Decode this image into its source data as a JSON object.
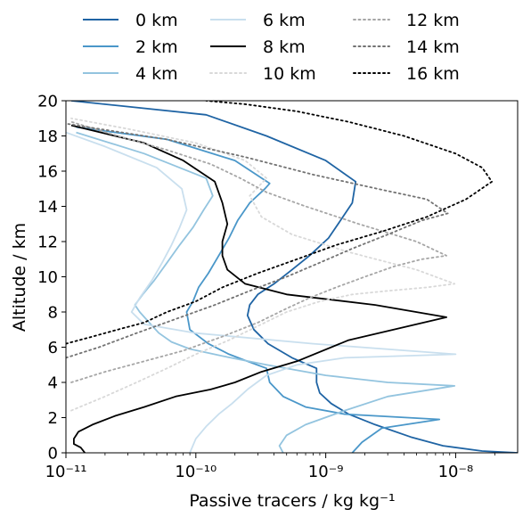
{
  "chart_data": {
    "type": "line",
    "title": "",
    "xlabel": "Passive tracers / kg kg⁻¹",
    "ylabel": "Altitude / km",
    "x_scale": "log",
    "xlim": [
      1e-11,
      3e-08
    ],
    "ylim": [
      0,
      20
    ],
    "x_ticks": [
      {
        "value": 1e-11,
        "label": "10⁻¹¹"
      },
      {
        "value": 1e-10,
        "label": "10⁻¹⁰"
      },
      {
        "value": 1e-09,
        "label": "10⁻⁹"
      },
      {
        "value": 1e-08,
        "label": "10⁻⁸"
      }
    ],
    "y_ticks": [
      0,
      2,
      4,
      6,
      8,
      10,
      12,
      14,
      16,
      18,
      20
    ],
    "grid": false,
    "legend_position": "top",
    "series": [
      {
        "name": "0 km",
        "color": "#1f64a4",
        "dash": "solid",
        "x": [
          3e-08,
          1.6e-08,
          8e-09,
          4.5e-09,
          2.4e-09,
          1.5e-09,
          1.1e-09,
          9e-10,
          8.5e-10,
          8.5e-10,
          5.5e-10,
          3.6e-10,
          2.8e-10,
          2.5e-10,
          2.6e-10,
          3e-10,
          4e-10,
          5.5e-10,
          7.5e-10,
          1.05e-09,
          1.3e-09,
          1.6e-09,
          1.7e-09,
          1e-09,
          3.5e-10,
          1.2e-10,
          1.1e-11
        ],
        "y": [
          0,
          0.1,
          0.4,
          0.9,
          1.6,
          2.2,
          2.8,
          3.4,
          4,
          4.8,
          5.4,
          6.2,
          7,
          7.8,
          8.4,
          9,
          9.6,
          10.4,
          11.2,
          12.2,
          13.2,
          14.2,
          15.4,
          16.6,
          18,
          19.2,
          20
        ]
      },
      {
        "name": "2 km",
        "color": "#4a97c9",
        "dash": "solid",
        "x": [
          1.6e-09,
          1.9e-09,
          2.7e-09,
          7.5e-09,
          1.4e-09,
          7e-10,
          4.7e-10,
          3.7e-10,
          3.5e-10,
          2.5e-10,
          1.8e-10,
          1.25e-10,
          9e-11,
          8.5e-11,
          9.5e-11,
          1.05e-10,
          1.25e-10,
          1.5e-10,
          1.8e-10,
          2.1e-10,
          2.6e-10,
          3.4e-10,
          3.7e-10,
          2e-10,
          6e-11,
          1.2e-11
        ],
        "y": [
          0,
          0.6,
          1.4,
          1.9,
          2.2,
          2.6,
          3.2,
          4,
          4.8,
          5.2,
          5.6,
          6.2,
          7,
          8,
          8.6,
          9.4,
          10.2,
          11.2,
          12.2,
          13.2,
          14.2,
          15,
          15.3,
          16.6,
          17.8,
          18.5
        ]
      },
      {
        "name": "4 km",
        "color": "#93c4df",
        "dash": "solid",
        "x": [
          4.7e-10,
          4.4e-10,
          5e-10,
          7e-10,
          1.4e-09,
          3e-09,
          9.8e-09,
          3e-09,
          1e-09,
          3.5e-10,
          1.6e-10,
          9e-11,
          6.5e-11,
          5.2e-11,
          4.5e-11,
          3.7e-11,
          3.4e-11,
          3.9e-11,
          4.8e-11,
          6e-11,
          7.5e-11,
          9.5e-11,
          1.15e-10,
          1.35e-10,
          1.2e-10,
          4e-11,
          1.2e-11
        ],
        "y": [
          0,
          0.4,
          1,
          1.6,
          2.4,
          3.2,
          3.8,
          4,
          4.4,
          5,
          5.5,
          5.9,
          6.3,
          6.8,
          7.3,
          8,
          8.4,
          9,
          9.8,
          10.8,
          11.8,
          12.8,
          13.8,
          14.6,
          15.6,
          17,
          18.2
        ]
      },
      {
        "name": "6 km",
        "color": "#c9dfee",
        "dash": "solid",
        "x": [
          9e-11,
          1e-10,
          1.2e-10,
          1.5e-10,
          1.9e-10,
          2.5e-10,
          3.5e-10,
          6e-10,
          1.4e-09,
          1e-08,
          8e-10,
          1e-10,
          4e-11,
          3.2e-11,
          3.7e-11,
          4.6e-11,
          5.5e-11,
          6.5e-11,
          7.5e-11,
          8.5e-11,
          7.8e-11,
          5e-11,
          2e-11,
          1e-11
        ],
        "y": [
          0,
          0.8,
          1.5,
          2.2,
          2.8,
          3.6,
          4.4,
          5,
          5.4,
          5.6,
          6.2,
          6.8,
          7.3,
          8,
          8.8,
          9.8,
          10.8,
          11.8,
          12.8,
          13.8,
          15,
          16.2,
          17.4,
          18.2
        ]
      },
      {
        "name": "8 km",
        "color": "#000000",
        "dash": "solid",
        "x": [
          1.4e-11,
          1.3e-11,
          1.15e-11,
          1.15e-11,
          1.25e-11,
          1.6e-11,
          2.4e-11,
          4e-11,
          7e-11,
          1.3e-10,
          2e-10,
          3.2e-10,
          6e-10,
          1.5e-09,
          8.5e-09,
          2.4e-09,
          5e-10,
          2.4e-10,
          1.75e-10,
          1.6e-10,
          1.6e-10,
          1.75e-10,
          1.6e-10,
          1.4e-10,
          8e-11,
          4e-11,
          1.1e-11
        ],
        "y": [
          0,
          0.3,
          0.5,
          0.8,
          1.2,
          1.6,
          2.1,
          2.6,
          3.2,
          3.6,
          4,
          4.6,
          5.2,
          6.4,
          7.7,
          8.4,
          9,
          9.6,
          10.4,
          11.2,
          12,
          13,
          14.2,
          15.4,
          16.6,
          17.6,
          18.6
        ]
      },
      {
        "name": "10 km",
        "color": "#d9d9d9",
        "dash": "dotted",
        "x": [
          1.1e-11,
          2e-11,
          3.5e-11,
          6e-11,
          1e-10,
          1.8e-10,
          3e-10,
          5e-10,
          9e-10,
          1.6e-09,
          3e-09,
          6e-09,
          9.8e-09,
          5e-09,
          1.5e-09,
          5.5e-10,
          3.2e-10,
          2.6e-10,
          3.5e-10,
          2.4e-10,
          1e-10,
          3e-11,
          1.1e-11
        ],
        "y": [
          2.4,
          3.2,
          4,
          4.8,
          5.6,
          6.4,
          7.2,
          8,
          8.6,
          9,
          9.2,
          9.4,
          9.6,
          10.4,
          11.4,
          12.4,
          13.4,
          14.6,
          15.6,
          16.6,
          17.6,
          18.4,
          19
        ]
      },
      {
        "name": "12 km",
        "color": "#a6a6a6",
        "dash": "dotted",
        "x": [
          1.1e-11,
          2e-11,
          4e-11,
          8e-11,
          1.6e-10,
          3e-10,
          5e-10,
          7.5e-10,
          1.2e-09,
          2e-09,
          3.4e-09,
          5.5e-09,
          8.5e-09,
          5e-09,
          1.8e-09,
          7e-10,
          3.5e-10,
          2.2e-10,
          1.3e-10,
          6e-11,
          2.5e-11,
          1.1e-11
        ],
        "y": [
          4,
          4.6,
          5.2,
          5.8,
          6.6,
          7.4,
          8.2,
          8.8,
          9.4,
          10,
          10.6,
          11,
          11.2,
          12,
          13,
          14,
          14.8,
          15.6,
          16.4,
          17.2,
          18,
          18.8
        ]
      },
      {
        "name": "14 km",
        "color": "#737373",
        "dash": "dotted",
        "x": [
          1e-11,
          1.8e-11,
          3.5e-11,
          7e-11,
          1.4e-10,
          2.6e-10,
          5e-10,
          9e-10,
          1.6e-09,
          3e-09,
          5.5e-09,
          8.7e-09,
          6e-09,
          2.5e-09,
          8e-10,
          2.4e-10,
          6e-11,
          1.8e-11,
          1e-11
        ],
        "y": [
          5.4,
          6,
          6.8,
          7.6,
          8.4,
          9.2,
          10,
          10.8,
          11.6,
          12.4,
          13.2,
          13.6,
          14.4,
          15,
          15.8,
          16.8,
          17.8,
          18.4,
          18.7
        ]
      },
      {
        "name": "16 km",
        "color": "#000000",
        "dash": "dotted",
        "x": [
          1e-11,
          1.6e-11,
          2.5e-11,
          4e-11,
          6e-11,
          1e-10,
          1.6e-10,
          3e-10,
          6e-10,
          1.2e-09,
          2.8e-09,
          6e-09,
          1.2e-08,
          1.9e-08,
          1.6e-08,
          1e-08,
          4e-09,
          1.5e-09,
          6e-10,
          2.4e-10,
          1.2e-10
        ],
        "y": [
          6.2,
          6.6,
          7,
          7.4,
          8,
          8.6,
          9.4,
          10.2,
          11,
          11.8,
          12.6,
          13.4,
          14.4,
          15.4,
          16.2,
          17,
          18,
          18.8,
          19.4,
          19.8,
          20
        ]
      }
    ]
  }
}
